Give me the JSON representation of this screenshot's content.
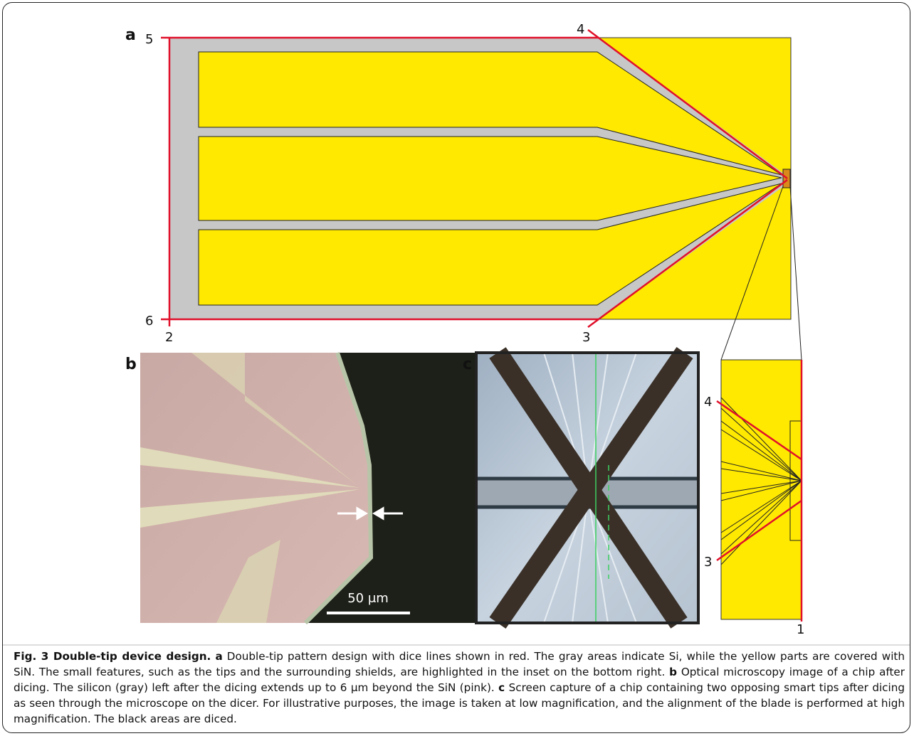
{
  "panel_a": {
    "label": "a",
    "markers": {
      "top_left": "5",
      "top_right": "4",
      "bottom_left": "6",
      "bottom_corner": "2",
      "bottom_right": "3"
    }
  },
  "inset": {
    "top": "4",
    "bottom": "3",
    "edge": "1"
  },
  "panel_b": {
    "label": "b",
    "scale_bar": "50 μm"
  },
  "panel_c": {
    "label": "c"
  },
  "caption": {
    "title": "Fig. 3 Double-tip device design.",
    "parts": [
      {
        "label": "a",
        "text": "Double-tip pattern design with dice lines shown in red. The gray areas indicate Si, while the yellow parts are covered with SiN. The small features, such as the tips and the surrounding shields, are highlighted in the inset on the bottom right."
      },
      {
        "label": "b",
        "text": "Optical microscopy image of a chip after dicing. The silicon (gray) left after the dicing extends up to 6 μm beyond the SiN (pink)."
      },
      {
        "label": "c",
        "text": "Screen capture of a chip containing two opposing smart tips after dicing as seen through the microscope on the dicer. For illustrative purposes, the image is taken at low magnification, and the alignment of the blade is performed at high magnification. The black areas are diced."
      }
    ]
  }
}
